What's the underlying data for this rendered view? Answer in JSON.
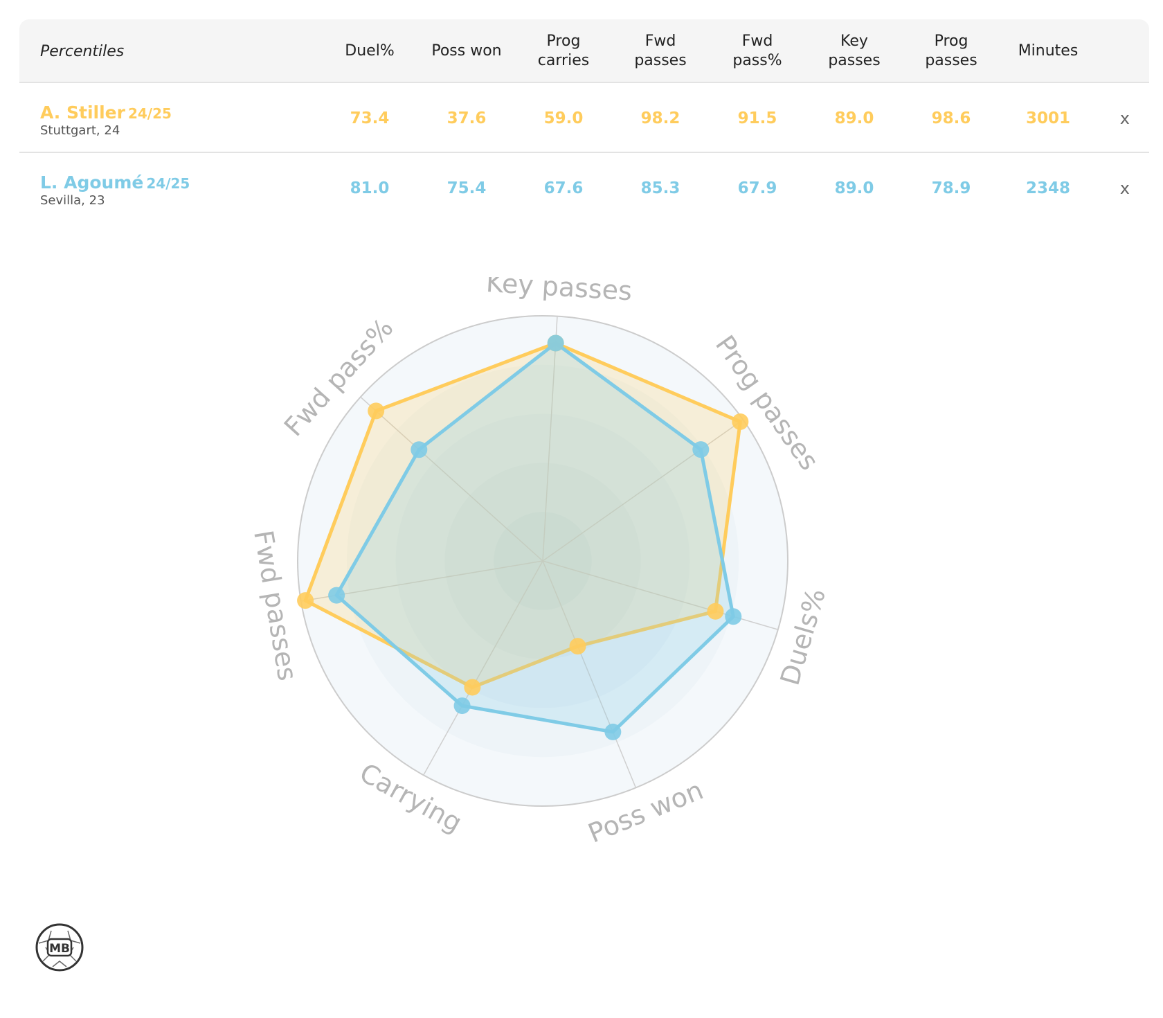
{
  "table": {
    "title": "Percentiles",
    "columns": [
      "Duel%",
      "Poss won",
      "Prog\ncarries",
      "Fwd\npasses",
      "Fwd\npass%",
      "Key\npasses",
      "Prog\npasses",
      "Minutes"
    ],
    "rows": [
      {
        "name": "A. Stiller",
        "season": "24/25",
        "team": "Stuttgart, 24",
        "color": "#ffcc5c",
        "values": [
          "73.4",
          "37.6",
          "59.0",
          "98.2",
          "91.5",
          "89.0",
          "98.6",
          "3001"
        ],
        "remove": "x"
      },
      {
        "name": "L. Agoumé",
        "season": "24/25",
        "team": "Sevilla, 23",
        "color": "#7fcbe6",
        "values": [
          "81.0",
          "75.4",
          "67.6",
          "85.3",
          "67.9",
          "89.0",
          "78.9",
          "2348"
        ],
        "remove": "x"
      }
    ]
  },
  "chart_data": {
    "type": "radar",
    "axes": [
      "Key passes",
      "Prog passes",
      "Duels%",
      "Poss won",
      "Carrying",
      "Fwd passes",
      "Fwd pass%"
    ],
    "range": [
      0,
      100
    ],
    "series": [
      {
        "name": "A. Stiller",
        "color": "#ffcc5c",
        "values": [
          89.0,
          98.6,
          73.4,
          37.6,
          59.0,
          98.2,
          91.5
        ]
      },
      {
        "name": "L. Agoumé",
        "color": "#7fcbe6",
        "values": [
          89.0,
          78.9,
          81.0,
          75.4,
          67.6,
          85.3,
          67.9
        ]
      }
    ]
  },
  "logo": {
    "text": "MB"
  }
}
